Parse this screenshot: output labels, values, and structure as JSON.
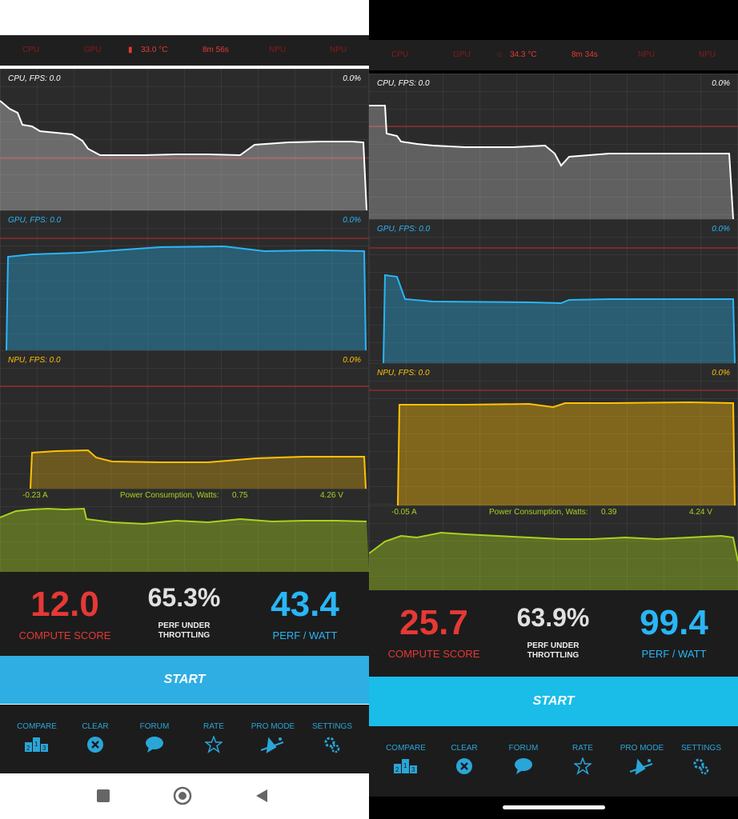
{
  "left": {
    "status": {
      "cpu": "CPU",
      "gpu": "GPU",
      "temp": "33.0 °C",
      "time": "8m 56s",
      "npu1": "NPU",
      "npu2": "NPU"
    },
    "cpu_chart": {
      "label": "CPU, FPS:  0.0",
      "pct": "0.0%",
      "color": "#ffffff"
    },
    "gpu_chart": {
      "label": "GPU, FPS:  0.0",
      "pct": "0.0%",
      "color": "#29b6f6"
    },
    "npu_chart": {
      "label": "NPU, FPS:  0.0",
      "pct": "0.0%",
      "color": "#ffc107"
    },
    "power": {
      "amps": "-0.23 A",
      "title": "Power Consumption, Watts:",
      "watts": "0.75",
      "volts": "4.26 V"
    },
    "scores": {
      "compute_value": "12.0",
      "compute_label": "COMPUTE SCORE",
      "throttle_value": "65.3%",
      "throttle_label_1": "PERF UNDER",
      "throttle_label_2": "THROTTLING",
      "watt_value": "43.4",
      "watt_label": "PERF / WATT"
    },
    "start_label": "START"
  },
  "right": {
    "status": {
      "cpu": "CPU",
      "gpu": "GPU",
      "temp": "34.3 °C",
      "time": "8m 34s",
      "npu1": "NPU",
      "npu2": "NPU"
    },
    "cpu_chart": {
      "label": "CPU, FPS:  0.0",
      "pct": "0.0%",
      "color": "#ffffff"
    },
    "gpu_chart": {
      "label": "GPU, FPS:  0.0",
      "pct": "0.0%",
      "color": "#29b6f6"
    },
    "npu_chart": {
      "label": "NPU, FPS:  0.0",
      "pct": "0.0%",
      "color": "#ffc107"
    },
    "power": {
      "amps": "-0.05 A",
      "title": "Power Consumption, Watts:",
      "watts": "0.39",
      "volts": "4.24 V"
    },
    "scores": {
      "compute_value": "25.7",
      "compute_label": "COMPUTE SCORE",
      "throttle_value": "63.9%",
      "throttle_label_1": "PERF UNDER",
      "throttle_label_2": "THROTTLING",
      "watt_value": "99.4",
      "watt_label": "PERF / WATT"
    },
    "start_label": "START"
  },
  "nav": {
    "compare": "COMPARE",
    "clear": "CLEAR",
    "forum": "FORUM",
    "rate": "RATE",
    "pro_mode": "PRO MODE",
    "settings": "SETTINGS"
  },
  "icons": {
    "compare": "podium-icon",
    "clear": "close-circle-icon",
    "forum": "speech-bubble-icon",
    "rate": "star-icon",
    "pro_mode": "wizard-icon",
    "settings": "gears-icon"
  },
  "colors": {
    "compute": "#e53935",
    "throttle": "#e0e0e0",
    "perf_watt": "#29b6f6",
    "accent": "#2eaee3",
    "power": "#a8d21e",
    "limit_line": "#c62828"
  }
}
